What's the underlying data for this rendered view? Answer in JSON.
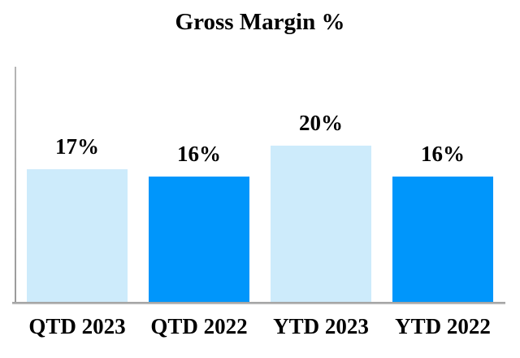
{
  "chart_data": {
    "type": "bar",
    "title": "Gross Margin %",
    "categories": [
      "QTD 2023",
      "QTD 2022",
      "YTD 2023",
      "YTD 2022"
    ],
    "values": [
      17,
      16,
      20,
      16
    ],
    "value_labels": [
      "17%",
      "16%",
      "20%",
      "16%"
    ],
    "bar_colors": [
      "#CDEBFB",
      "#0096FB",
      "#CDEBFB",
      "#0096FB"
    ],
    "xlabel": "",
    "ylabel": "",
    "ylim": [
      0,
      30
    ],
    "grid": false,
    "legend": "none",
    "data_labels_position": "above-bars"
  },
  "colors": {
    "series_2023_light_blue": "#CDEBFB",
    "series_2022_bright_blue": "#0096FB",
    "axis_gray": "#A6A6A6",
    "text": "#000000",
    "background": "#FFFFFF"
  }
}
